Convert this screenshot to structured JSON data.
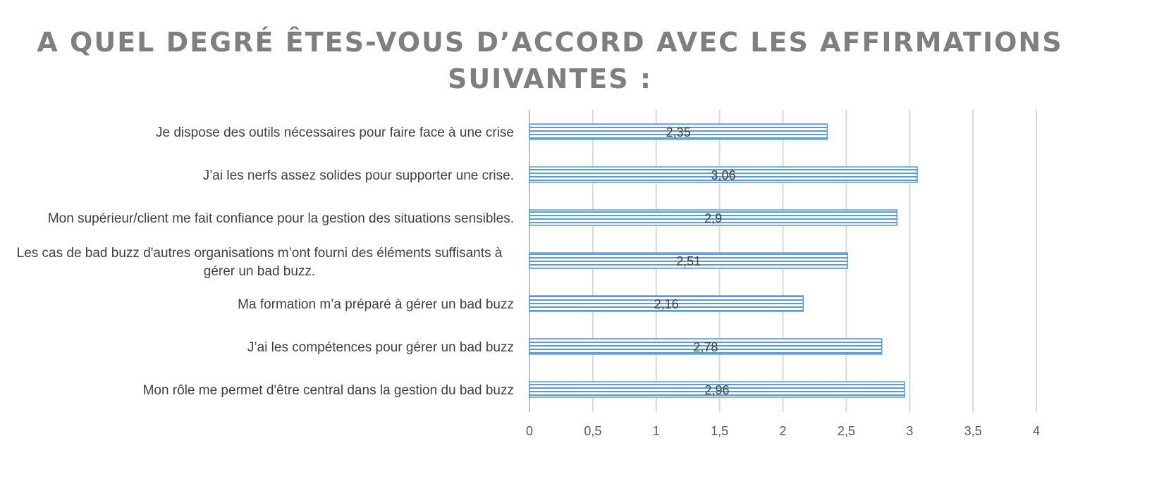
{
  "chart_data": {
    "type": "bar",
    "orientation": "horizontal",
    "title_lines": [
      "A QUEL DEGRÉ ÊTES-VOUS D’ACCORD AVEC LES AFFIRMATIONS",
      "SUIVANTES :"
    ],
    "categories": [
      [
        "Je dispose des outils nécessaires pour faire face à une crise"
      ],
      [
        "J’ai les nerfs assez solides pour supporter une crise."
      ],
      [
        "Mon supérieur/client me fait confiance pour la gestion des situations sensibles."
      ],
      [
        "Les cas de bad buzz d'autres organisations m’ont fourni des éléments suffisants à",
        "gérer un bad buzz."
      ],
      [
        "Ma formation m’a préparé à gérer un bad buzz"
      ],
      [
        "J’ai les compétences pour gérer un bad buzz"
      ],
      [
        "Mon rôle me permet d'être central dans la gestion du bad buzz"
      ]
    ],
    "values": [
      2.35,
      3.06,
      2.9,
      2.51,
      2.16,
      2.78,
      2.96
    ],
    "data_labels": [
      "2,35",
      "3,06",
      "2,9",
      "2,51",
      "2,16",
      "2,78",
      "2,96"
    ],
    "xlim": [
      0,
      4
    ],
    "ticks": [
      0,
      0.5,
      1,
      1.5,
      2,
      2.5,
      3,
      3.5,
      4
    ],
    "tick_labels": [
      "0",
      "0,5",
      "1",
      "1,5",
      "2",
      "2,5",
      "3",
      "3,5",
      "4"
    ],
    "grid": true,
    "legend": "none",
    "bar_fill": "#5b9bd5",
    "bar_pattern": "horizontal-stripes"
  }
}
